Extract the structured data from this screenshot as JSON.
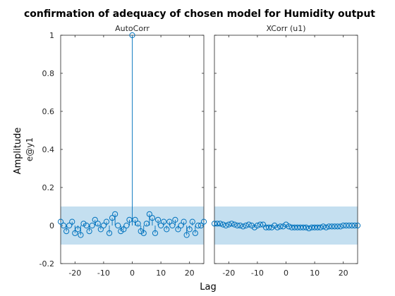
{
  "title": "confirmation of adequacy of chosen model for Humidity output",
  "ylabel": "Amplitude",
  "ylabel_sub": "e@y1",
  "xlabel": "Lag",
  "colors": {
    "stem": "#0072bd",
    "band": "#c4dff0",
    "axis": "#262626"
  },
  "chart_data": [
    {
      "type": "stem",
      "title": "AutoCorr",
      "xlim": [
        -25,
        25
      ],
      "ylim": [
        -0.2,
        1
      ],
      "xticks": [
        -20,
        -10,
        0,
        10,
        20
      ],
      "yticks": [
        -0.2,
        0,
        0.2,
        0.4,
        0.6,
        0.8,
        1
      ],
      "yticklabels": [
        "-0.2",
        "0",
        "0.2",
        "0.4",
        "0.6",
        "0.8",
        "1"
      ],
      "confidence_band": [
        -0.1,
        0.1
      ],
      "x": [
        -25,
        -24,
        -23,
        -22,
        -21,
        -20,
        -19,
        -18,
        -17,
        -16,
        -15,
        -14,
        -13,
        -12,
        -11,
        -10,
        -9,
        -8,
        -7,
        -6,
        -5,
        -4,
        -3,
        -2,
        -1,
        0,
        1,
        2,
        3,
        4,
        5,
        6,
        7,
        8,
        9,
        10,
        11,
        12,
        13,
        14,
        15,
        16,
        17,
        18,
        19,
        20,
        21,
        22,
        23,
        24,
        25
      ],
      "y": [
        0.02,
        0.0,
        -0.03,
        0.0,
        0.02,
        -0.04,
        -0.02,
        -0.05,
        0.01,
        0.0,
        -0.03,
        0.0,
        0.03,
        0.01,
        -0.02,
        0.0,
        0.02,
        -0.04,
        0.04,
        0.06,
        0.0,
        -0.03,
        -0.02,
        0.0,
        0.03,
        1.0,
        0.03,
        0.01,
        -0.03,
        -0.04,
        0.01,
        0.06,
        0.04,
        -0.04,
        0.03,
        0.0,
        0.02,
        -0.02,
        0.02,
        0.0,
        0.03,
        -0.02,
        0.0,
        0.02,
        -0.05,
        -0.02,
        0.02,
        -0.04,
        0.0,
        0.0,
        0.02
      ]
    },
    {
      "type": "stem",
      "title": "XCorr (u1)",
      "xlim": [
        -25,
        25
      ],
      "ylim": [
        -0.2,
        1
      ],
      "xticks": [
        -20,
        -10,
        0,
        10,
        20
      ],
      "confidence_band": [
        -0.1,
        0.1
      ],
      "x": [
        -25,
        -24,
        -23,
        -22,
        -21,
        -20,
        -19,
        -18,
        -17,
        -16,
        -15,
        -14,
        -13,
        -12,
        -11,
        -10,
        -9,
        -8,
        -7,
        -6,
        -5,
        -4,
        -3,
        -2,
        -1,
        0,
        1,
        2,
        3,
        4,
        5,
        6,
        7,
        8,
        9,
        10,
        11,
        12,
        13,
        14,
        15,
        16,
        17,
        18,
        19,
        20,
        21,
        22,
        23,
        24,
        25
      ],
      "y": [
        0.01,
        0.01,
        0.01,
        0.005,
        0.0,
        0.005,
        0.01,
        0.005,
        0.0,
        0.0,
        -0.005,
        0.0,
        0.005,
        0.0,
        -0.01,
        0.0,
        0.005,
        0.005,
        -0.01,
        -0.01,
        -0.01,
        0.0,
        -0.01,
        -0.005,
        -0.005,
        0.005,
        -0.005,
        -0.01,
        -0.01,
        -0.01,
        -0.01,
        -0.01,
        -0.01,
        -0.015,
        -0.01,
        -0.01,
        -0.01,
        -0.01,
        -0.005,
        -0.01,
        -0.005,
        -0.005,
        -0.005,
        -0.005,
        -0.005,
        0.0,
        0.0,
        0.0,
        0.0,
        0.0,
        0.0
      ]
    }
  ]
}
